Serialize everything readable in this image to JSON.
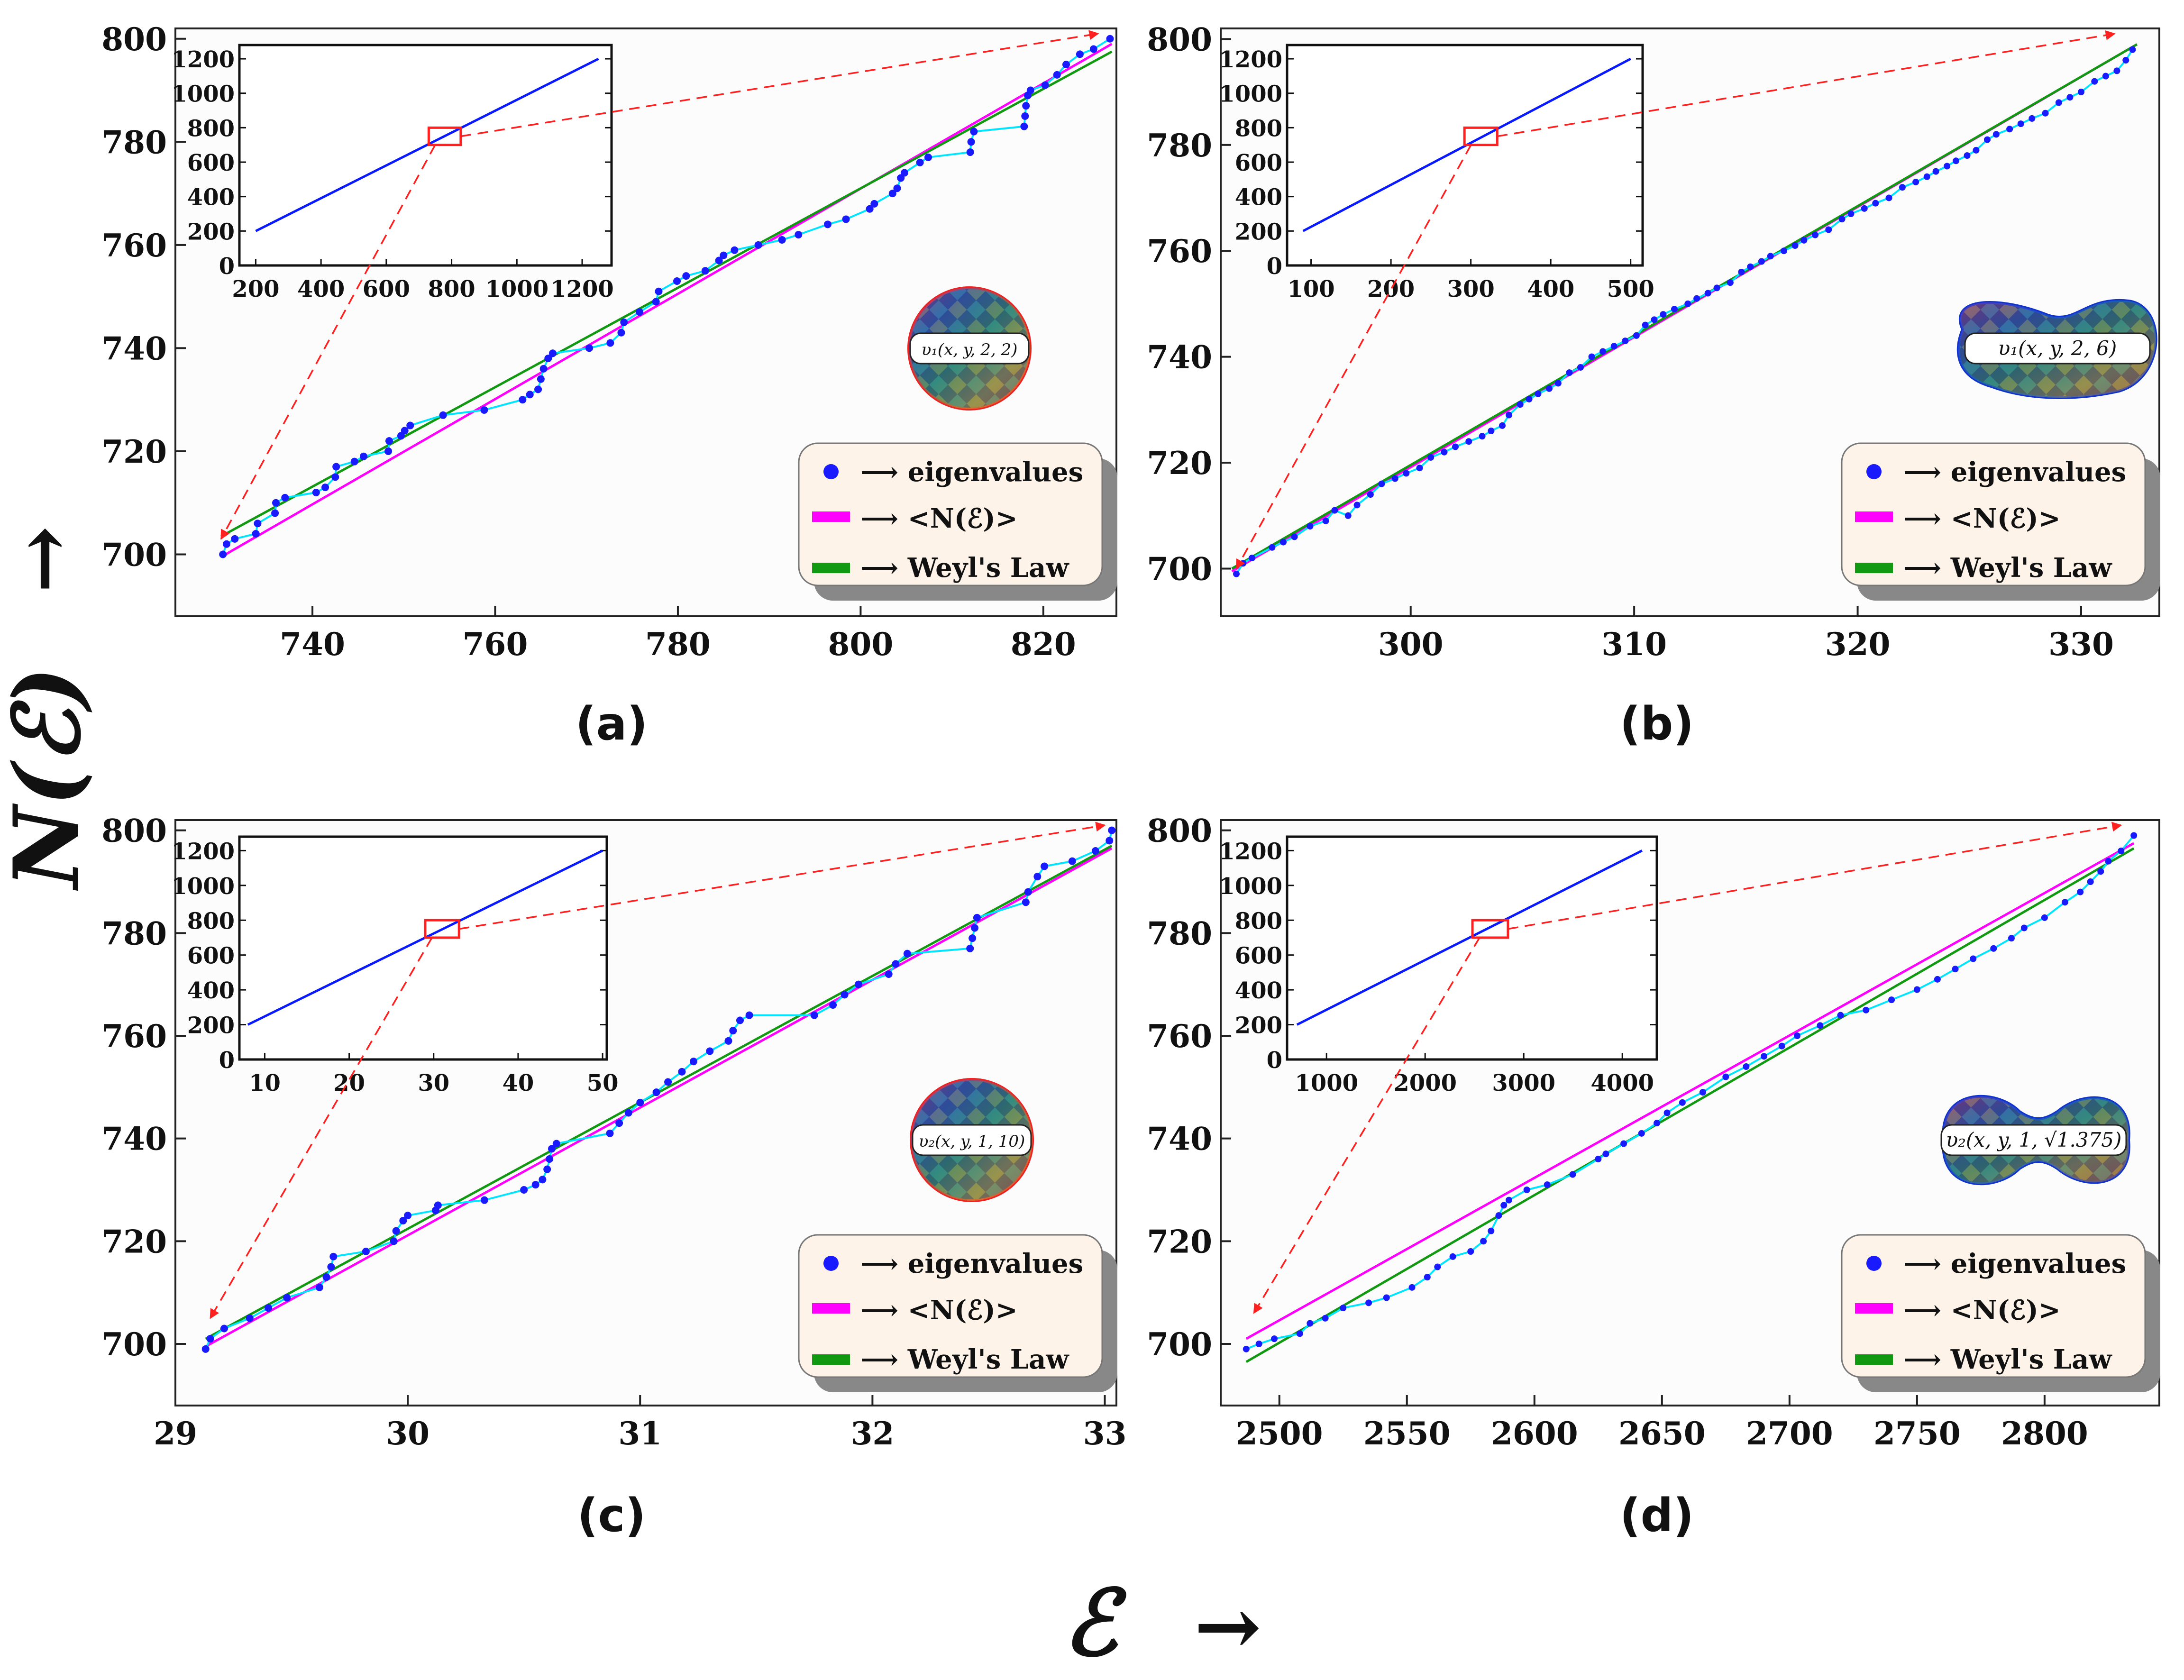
{
  "figure": {
    "y_axis_label": "N(ℰ)",
    "y_axis_arrow": "→",
    "x_axis_label": "ℰ",
    "x_axis_arrow": "→"
  },
  "colors": {
    "eigenvalues": "#1a1aff",
    "staircase": "#00e5ff",
    "smooth": "#ff00ff",
    "weyl": "#119911",
    "zoom": "#ff2020",
    "inset_line": "#0a1aff",
    "legend_bg": "#fdf3e9",
    "legend_shadow": "#888888"
  },
  "legend": {
    "eigenvalues": "⟶ eigenvalues",
    "smooth": "⟶ <N(ℰ)>",
    "weyl": "⟶ Weyl's Law"
  },
  "chart_data": [
    {
      "panel": "(a)",
      "type": "line",
      "shape": "circle",
      "shape_label": "υ₁(x, y, 2, 2)",
      "xlim": [
        725,
        828
      ],
      "ylim": [
        688,
        802
      ],
      "xticks": [
        740,
        760,
        780,
        800,
        820
      ],
      "yticks": [
        700,
        720,
        740,
        760,
        780,
        800
      ],
      "eigenvalues": [
        [
          730.2,
          700
        ],
        [
          730.6,
          702
        ],
        [
          731.5,
          703
        ],
        [
          733.8,
          704
        ],
        [
          734.0,
          706
        ],
        [
          735.9,
          708
        ],
        [
          736.0,
          710
        ],
        [
          737.0,
          711
        ],
        [
          740.4,
          712
        ],
        [
          741.4,
          713
        ],
        [
          742.5,
          715
        ],
        [
          742.6,
          717
        ],
        [
          744.6,
          718
        ],
        [
          745.6,
          719
        ],
        [
          748.3,
          720
        ],
        [
          748.4,
          722
        ],
        [
          749.7,
          723
        ],
        [
          750.1,
          724
        ],
        [
          750.7,
          725
        ],
        [
          754.3,
          727
        ],
        [
          758.8,
          728
        ],
        [
          763.0,
          730
        ],
        [
          763.8,
          731
        ],
        [
          764.7,
          732
        ],
        [
          765.0,
          734
        ],
        [
          765.3,
          736
        ],
        [
          765.8,
          738
        ],
        [
          766.3,
          739
        ],
        [
          770.3,
          740
        ],
        [
          772.6,
          741
        ],
        [
          773.8,
          743
        ],
        [
          774.1,
          745
        ],
        [
          775.8,
          747
        ],
        [
          777.6,
          749
        ],
        [
          777.9,
          751
        ],
        [
          779.9,
          753
        ],
        [
          780.9,
          754
        ],
        [
          783.0,
          755
        ],
        [
          784.5,
          757
        ],
        [
          785.0,
          758
        ],
        [
          786.2,
          759
        ],
        [
          788.8,
          760
        ],
        [
          791.4,
          761
        ],
        [
          793.2,
          762
        ],
        [
          796.4,
          764
        ],
        [
          798.4,
          765
        ],
        [
          801.0,
          767
        ],
        [
          801.5,
          768
        ],
        [
          803.5,
          770
        ],
        [
          804.0,
          771
        ],
        [
          804.4,
          773
        ],
        [
          804.8,
          774
        ],
        [
          806.5,
          776
        ],
        [
          807.4,
          777
        ],
        [
          812.0,
          778
        ],
        [
          812.1,
          780
        ],
        [
          812.4,
          782
        ],
        [
          817.9,
          783
        ],
        [
          818.0,
          785
        ],
        [
          818.1,
          787
        ],
        [
          818.3,
          789
        ],
        [
          818.6,
          790
        ],
        [
          820.2,
          791
        ],
        [
          821.5,
          793
        ],
        [
          822.5,
          795
        ],
        [
          824.0,
          797
        ],
        [
          825.5,
          798
        ],
        [
          827.3,
          800
        ]
      ],
      "smooth_line": [
        [
          730,
          699.5
        ],
        [
          827.5,
          799
        ]
      ],
      "weyl_line": [
        [
          730,
          703.5
        ],
        [
          827.5,
          797.5
        ]
      ],
      "inset": {
        "xlim": [
          150,
          1290
        ],
        "ylim": [
          0,
          1280
        ],
        "xticks": [
          200,
          400,
          600,
          800,
          1000,
          1200
        ],
        "yticks": [
          0,
          200,
          400,
          600,
          800,
          1000,
          1200
        ],
        "line": [
          [
            200,
            200
          ],
          [
            1250,
            1200
          ]
        ],
        "zoom_box": [
          730,
          828,
          700,
          800
        ]
      },
      "zoom_arrow_targets": [
        [
          730,
          703
        ],
        [
          826,
          801
        ]
      ]
    },
    {
      "panel": "(b)",
      "type": "line",
      "shape": "kidney",
      "shape_label": "υ₁(x, y, 2, 6)",
      "xlim": [
        291.5,
        333.5
      ],
      "ylim": [
        691,
        802
      ],
      "xticks": [
        300,
        310,
        320,
        330
      ],
      "yticks": [
        700,
        720,
        740,
        760,
        780,
        800
      ],
      "eigenvalues": [
        [
          292.2,
          699
        ],
        [
          292.5,
          701
        ],
        [
          292.9,
          702
        ],
        [
          293.8,
          704
        ],
        [
          294.3,
          705
        ],
        [
          294.8,
          706
        ],
        [
          295.5,
          708
        ],
        [
          296.2,
          709
        ],
        [
          296.6,
          711
        ],
        [
          297.2,
          710
        ],
        [
          297.6,
          712
        ],
        [
          298.2,
          714
        ],
        [
          298.7,
          716
        ],
        [
          299.3,
          717
        ],
        [
          299.8,
          718
        ],
        [
          300.4,
          719
        ],
        [
          300.9,
          721
        ],
        [
          301.5,
          722
        ],
        [
          302.0,
          723
        ],
        [
          302.6,
          724
        ],
        [
          303.2,
          725
        ],
        [
          303.6,
          726
        ],
        [
          304.1,
          727
        ],
        [
          304.4,
          729
        ],
        [
          304.9,
          731
        ],
        [
          305.3,
          732
        ],
        [
          305.7,
          733
        ],
        [
          306.2,
          734
        ],
        [
          306.6,
          735
        ],
        [
          307.1,
          737
        ],
        [
          307.6,
          738
        ],
        [
          308.1,
          740
        ],
        [
          308.6,
          741
        ],
        [
          309.1,
          742
        ],
        [
          309.6,
          743
        ],
        [
          310.1,
          744
        ],
        [
          310.5,
          746
        ],
        [
          310.9,
          747
        ],
        [
          311.3,
          748
        ],
        [
          311.8,
          749
        ],
        [
          312.4,
          750
        ],
        [
          312.8,
          751
        ],
        [
          313.3,
          752
        ],
        [
          313.7,
          753
        ],
        [
          314.3,
          754
        ],
        [
          314.8,
          756
        ],
        [
          315.2,
          757
        ],
        [
          315.7,
          758
        ],
        [
          316.1,
          759
        ],
        [
          316.7,
          760
        ],
        [
          317.2,
          761
        ],
        [
          317.6,
          762
        ],
        [
          318.1,
          763
        ],
        [
          318.7,
          764
        ],
        [
          319.3,
          766
        ],
        [
          319.7,
          767
        ],
        [
          320.3,
          768
        ],
        [
          320.8,
          769
        ],
        [
          321.4,
          770
        ],
        [
          322.0,
          772
        ],
        [
          322.6,
          773
        ],
        [
          323.1,
          774
        ],
        [
          323.5,
          775
        ],
        [
          324.0,
          776
        ],
        [
          324.4,
          777
        ],
        [
          324.9,
          778
        ],
        [
          325.3,
          779
        ],
        [
          325.8,
          781
        ],
        [
          326.2,
          782
        ],
        [
          326.8,
          783
        ],
        [
          327.3,
          784
        ],
        [
          327.8,
          785
        ],
        [
          328.4,
          786
        ],
        [
          329.0,
          788
        ],
        [
          329.5,
          789
        ],
        [
          330.0,
          790
        ],
        [
          330.6,
          792
        ],
        [
          331.1,
          793
        ],
        [
          331.6,
          794
        ],
        [
          332.0,
          796
        ],
        [
          332.3,
          798
        ]
      ],
      "smooth_line": [
        [
          292,
          699.5
        ],
        [
          332.5,
          799
        ]
      ],
      "weyl_line": [
        [
          292,
          700
        ],
        [
          332.5,
          799
        ]
      ],
      "inset": {
        "xlim": [
          70,
          515
        ],
        "ylim": [
          0,
          1280
        ],
        "xticks": [
          100,
          200,
          300,
          400,
          500
        ],
        "yticks": [
          0,
          200,
          400,
          600,
          800,
          1000,
          1200
        ],
        "line": [
          [
            90,
            200
          ],
          [
            500,
            1200
          ]
        ],
        "zoom_box": [
          292,
          333,
          700,
          800
        ]
      },
      "zoom_arrow_targets": [
        [
          292.2,
          700
        ],
        [
          331.5,
          801
        ]
      ]
    },
    {
      "panel": "(c)",
      "type": "line",
      "shape": "circle",
      "shape_label": "υ₂(x, y, 1, 10)",
      "xlim": [
        29.0,
        33.05
      ],
      "ylim": [
        688,
        802
      ],
      "xticks": [
        29,
        30,
        31,
        32,
        33
      ],
      "yticks": [
        700,
        720,
        740,
        760,
        780,
        800
      ],
      "eigenvalues": [
        [
          29.13,
          699
        ],
        [
          29.15,
          701
        ],
        [
          29.21,
          703
        ],
        [
          29.32,
          705
        ],
        [
          29.4,
          707
        ],
        [
          29.48,
          709
        ],
        [
          29.62,
          711
        ],
        [
          29.65,
          713
        ],
        [
          29.67,
          715
        ],
        [
          29.68,
          717
        ],
        [
          29.82,
          718
        ],
        [
          29.94,
          720
        ],
        [
          29.95,
          722
        ],
        [
          29.98,
          724
        ],
        [
          30.0,
          725
        ],
        [
          30.12,
          726
        ],
        [
          30.13,
          727
        ],
        [
          30.33,
          728
        ],
        [
          30.5,
          730
        ],
        [
          30.55,
          731
        ],
        [
          30.58,
          732
        ],
        [
          30.6,
          734
        ],
        [
          30.61,
          736
        ],
        [
          30.62,
          738
        ],
        [
          30.64,
          739
        ],
        [
          30.87,
          741
        ],
        [
          30.91,
          743
        ],
        [
          30.95,
          745
        ],
        [
          31.0,
          747
        ],
        [
          31.07,
          749
        ],
        [
          31.12,
          751
        ],
        [
          31.18,
          753
        ],
        [
          31.23,
          755
        ],
        [
          31.3,
          757
        ],
        [
          31.38,
          759
        ],
        [
          31.4,
          761
        ],
        [
          31.43,
          763
        ],
        [
          31.47,
          764
        ],
        [
          31.75,
          764
        ],
        [
          31.83,
          766
        ],
        [
          31.88,
          768
        ],
        [
          31.94,
          770
        ],
        [
          32.07,
          772
        ],
        [
          32.1,
          774
        ],
        [
          32.15,
          776
        ],
        [
          32.42,
          777
        ],
        [
          32.43,
          779
        ],
        [
          32.44,
          781
        ],
        [
          32.45,
          783
        ],
        [
          32.66,
          786
        ],
        [
          32.67,
          788
        ],
        [
          32.71,
          791
        ],
        [
          32.74,
          793
        ],
        [
          32.86,
          794
        ],
        [
          32.96,
          796
        ],
        [
          33.02,
          798
        ],
        [
          33.03,
          800
        ]
      ],
      "smooth_line": [
        [
          29.13,
          699.5
        ],
        [
          33.03,
          796.5
        ]
      ],
      "weyl_line": [
        [
          29.13,
          701
        ],
        [
          33.03,
          797
        ]
      ],
      "inset": {
        "xlim": [
          7,
          50.5
        ],
        "ylim": [
          0,
          1280
        ],
        "xticks": [
          10,
          20,
          30,
          40,
          50
        ],
        "yticks": [
          0,
          200,
          400,
          600,
          800,
          1000,
          1200
        ],
        "line": [
          [
            8,
            200
          ],
          [
            50,
            1200
          ]
        ],
        "zoom_box": [
          29,
          33,
          700,
          800
        ]
      },
      "zoom_arrow_targets": [
        [
          29.15,
          705
        ],
        [
          33.0,
          801
        ]
      ]
    },
    {
      "panel": "(d)",
      "type": "line",
      "shape": "peanut",
      "shape_label": "υ₂(x, y, 1, √1.375)",
      "xlim": [
        2477,
        2845
      ],
      "ylim": [
        688,
        802
      ],
      "xticks": [
        2500,
        2550,
        2600,
        2650,
        2700,
        2750,
        2800
      ],
      "yticks": [
        700,
        720,
        740,
        760,
        780,
        800
      ],
      "eigenvalues": [
        [
          2487,
          699
        ],
        [
          2492,
          700
        ],
        [
          2498,
          701
        ],
        [
          2508,
          702
        ],
        [
          2512,
          704
        ],
        [
          2518,
          705
        ],
        [
          2525,
          707
        ],
        [
          2535,
          708
        ],
        [
          2542,
          709
        ],
        [
          2552,
          711
        ],
        [
          2558,
          713
        ],
        [
          2562,
          715
        ],
        [
          2568,
          717
        ],
        [
          2575,
          718
        ],
        [
          2580,
          720
        ],
        [
          2583,
          722
        ],
        [
          2586,
          725
        ],
        [
          2588,
          727
        ],
        [
          2590,
          728
        ],
        [
          2597,
          730
        ],
        [
          2605,
          731
        ],
        [
          2615,
          733
        ],
        [
          2625,
          736
        ],
        [
          2628,
          737
        ],
        [
          2635,
          739
        ],
        [
          2642,
          741
        ],
        [
          2648,
          743
        ],
        [
          2652,
          745
        ],
        [
          2658,
          747
        ],
        [
          2666,
          749
        ],
        [
          2675,
          752
        ],
        [
          2683,
          754
        ],
        [
          2690,
          756
        ],
        [
          2697,
          758
        ],
        [
          2703,
          760
        ],
        [
          2712,
          762
        ],
        [
          2720,
          764
        ],
        [
          2730,
          765
        ],
        [
          2740,
          767
        ],
        [
          2750,
          769
        ],
        [
          2758,
          771
        ],
        [
          2765,
          773
        ],
        [
          2772,
          775
        ],
        [
          2780,
          777
        ],
        [
          2787,
          779
        ],
        [
          2792,
          781
        ],
        [
          2800,
          783
        ],
        [
          2808,
          786
        ],
        [
          2814,
          788
        ],
        [
          2818,
          790
        ],
        [
          2822,
          792
        ],
        [
          2825,
          794
        ],
        [
          2830,
          796
        ],
        [
          2835,
          799
        ]
      ],
      "smooth_line": [
        [
          2487,
          701
        ],
        [
          2835,
          797.5
        ]
      ],
      "weyl_line": [
        [
          2487,
          696.5
        ],
        [
          2835,
          796.5
        ]
      ],
      "inset": {
        "xlim": [
          600,
          4350
        ],
        "ylim": [
          0,
          1280
        ],
        "xticks": [
          1000,
          2000,
          3000,
          4000
        ],
        "yticks": [
          0,
          200,
          400,
          600,
          800,
          1000,
          1200
        ],
        "line": [
          [
            700,
            200
          ],
          [
            4200,
            1200
          ]
        ],
        "zoom_box": [
          2480,
          2840,
          700,
          800
        ]
      },
      "zoom_arrow_targets": [
        [
          2490,
          706
        ],
        [
          2830,
          801
        ]
      ]
    }
  ]
}
